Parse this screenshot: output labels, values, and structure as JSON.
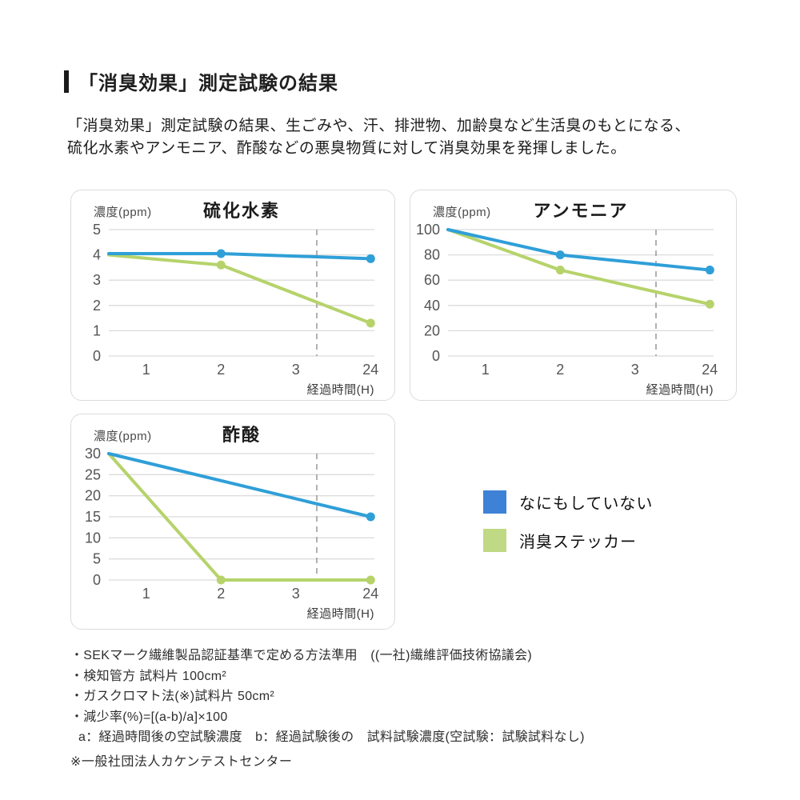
{
  "header": {
    "title": "「消臭効果」測定試験の結果",
    "body": "「消臭効果」測定試験の結果、生ごみや、汗、排泄物、加齢臭など生活臭のもとになる、\n硫化水素やアンモニア、酢酸などの悪臭物質に対して消臭効果を発揮しました。"
  },
  "colors": {
    "blue_line": "#2f9fd8",
    "green_line": "#b6d36b",
    "blue_legend": "#3e82d8",
    "green_legend": "#c0d984",
    "grid": "#dcdcdc",
    "dash": "#9e9e9e",
    "axis_text": "#555555",
    "xlabel_text": "#3c3c3c"
  },
  "legend": {
    "items": [
      {
        "label": "なにもしていない",
        "color": "blue_legend"
      },
      {
        "label": "消臭ステッカー",
        "color": "green_legend"
      }
    ]
  },
  "chart_data": [
    {
      "type": "line",
      "title": "硫化水素",
      "ylabel": "濃度(ppm)",
      "xlabel": "経過時間(H)",
      "x_categories": [
        "1",
        "2",
        "3",
        "24"
      ],
      "yticks": [
        0,
        1,
        2,
        3,
        4,
        5
      ],
      "ylim": [
        0,
        5
      ],
      "grid": true,
      "dash_between": [
        "3",
        "24"
      ],
      "series": [
        {
          "name": "なにもしていない",
          "color": "blue_line",
          "points": [
            {
              "x": "start",
              "y": 4.05
            },
            {
              "x": "2",
              "y": 4.05,
              "dot": true
            },
            {
              "x": "24",
              "y": 3.85,
              "dot": true
            }
          ]
        },
        {
          "name": "消臭ステッカー",
          "color": "green_line",
          "points": [
            {
              "x": "start",
              "y": 4.0
            },
            {
              "x": "2",
              "y": 3.6,
              "dot": true
            },
            {
              "x": "24",
              "y": 1.3,
              "dot": true
            }
          ]
        }
      ]
    },
    {
      "type": "line",
      "title": "アンモニア",
      "ylabel": "濃度(ppm)",
      "xlabel": "経過時間(H)",
      "x_categories": [
        "1",
        "2",
        "3",
        "24"
      ],
      "yticks": [
        0,
        20,
        40,
        60,
        80,
        100
      ],
      "ylim": [
        0,
        100
      ],
      "grid": true,
      "dash_between": [
        "3",
        "24"
      ],
      "series": [
        {
          "name": "なにもしていない",
          "color": "blue_line",
          "points": [
            {
              "x": "start",
              "y": 100
            },
            {
              "x": "2",
              "y": 80,
              "dot": true
            },
            {
              "x": "24",
              "y": 68,
              "dot": true
            }
          ]
        },
        {
          "name": "消臭ステッカー",
          "color": "green_line",
          "points": [
            {
              "x": "start",
              "y": 100
            },
            {
              "x": "2",
              "y": 68,
              "dot": true
            },
            {
              "x": "24",
              "y": 41,
              "dot": true
            }
          ]
        }
      ]
    },
    {
      "type": "line",
      "title": "酢酸",
      "ylabel": "濃度(ppm)",
      "xlabel": "経過時間(H)",
      "x_categories": [
        "1",
        "2",
        "3",
        "24"
      ],
      "yticks": [
        0,
        5,
        10,
        15,
        20,
        25,
        30
      ],
      "ylim": [
        0,
        30
      ],
      "grid": true,
      "dash_between": [
        "3",
        "24"
      ],
      "series": [
        {
          "name": "なにもしていない",
          "color": "blue_line",
          "points": [
            {
              "x": "start",
              "y": 30
            },
            {
              "x": "24",
              "y": 15,
              "dot": true
            }
          ]
        },
        {
          "name": "消臭ステッカー",
          "color": "green_line",
          "points": [
            {
              "x": "start",
              "y": 30
            },
            {
              "x": "2",
              "y": 0,
              "dot": true
            },
            {
              "x": "24",
              "y": 0,
              "dot": true
            }
          ]
        }
      ]
    }
  ],
  "notes": {
    "lines": [
      "・SEKマーク繊維製品認証基準で定める方法準用　((一社)繊維評価技術協議会)",
      "・検知管方 試料片 100cm²",
      "・ガスクロマト法(※)試料片 50cm²",
      "・減少率(%)=[(a-b)/a]×100",
      "a：経過時間後の空試験濃度　b：経過試験後の　試料試験濃度(空試験：試験試料なし)"
    ],
    "footer": "※一般社団法人カケンテストセンター"
  }
}
